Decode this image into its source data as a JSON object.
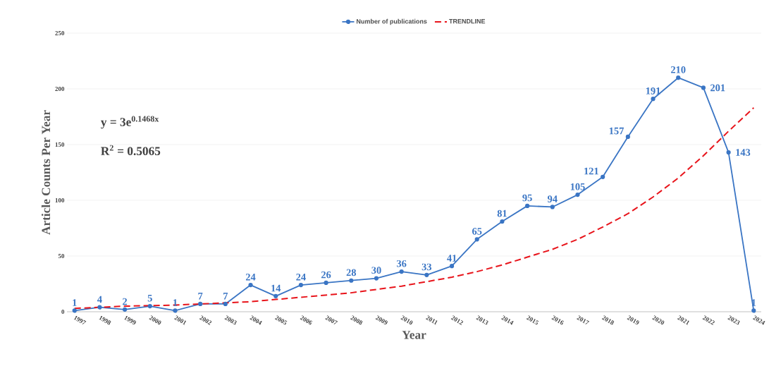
{
  "chart_data": {
    "type": "line",
    "xlabel": "Year",
    "ylabel": "Article Counts Per Year",
    "categories": [
      "1997",
      "1998",
      "1999",
      "2000",
      "2001",
      "2002",
      "2003",
      "2004",
      "2005",
      "2006",
      "2007",
      "2008",
      "2009",
      "2010",
      "2011",
      "2012",
      "2013",
      "2014",
      "2015",
      "2016",
      "2017",
      "2018",
      "2019",
      "2020",
      "2021",
      "2022",
      "2023",
      "2024"
    ],
    "series": [
      {
        "name": "Number of publications",
        "color": "#3a75c4",
        "marker": "circle",
        "line_style": "solid",
        "values": [
          1,
          4,
          2,
          5,
          1,
          7,
          7,
          24,
          14,
          24,
          26,
          28,
          30,
          36,
          33,
          41,
          65,
          81,
          95,
          94,
          105,
          121,
          157,
          191,
          210,
          201,
          143,
          1
        ],
        "value_labels": [
          "1",
          "4",
          "2",
          "5",
          "1",
          "7",
          "7",
          "24",
          "14",
          "24",
          "26",
          "28",
          "30",
          "36",
          "33",
          "41",
          "65",
          "81",
          "95",
          "94",
          "105",
          "121",
          "157",
          "191",
          "210",
          "201",
          "143",
          "1"
        ]
      },
      {
        "name": "TRENDLINE",
        "type": "line",
        "color": "#e8141b",
        "marker": "none",
        "line_style": "dashed",
        "values": [
          3,
          4,
          5,
          5.5,
          6,
          7,
          8,
          9,
          11,
          13,
          15,
          17,
          20,
          23,
          27,
          31,
          36,
          42,
          49,
          56,
          65,
          76,
          88,
          103,
          120,
          140,
          162,
          183
        ]
      }
    ],
    "ylim": [
      0,
      250
    ],
    "yticks": [
      0,
      50,
      100,
      150,
      200,
      250
    ],
    "grid": "y",
    "legend": "top",
    "annotations": [
      "y = 3e$^{0.1468x}$",
      "R$^{2}$ = 0.5065"
    ]
  }
}
